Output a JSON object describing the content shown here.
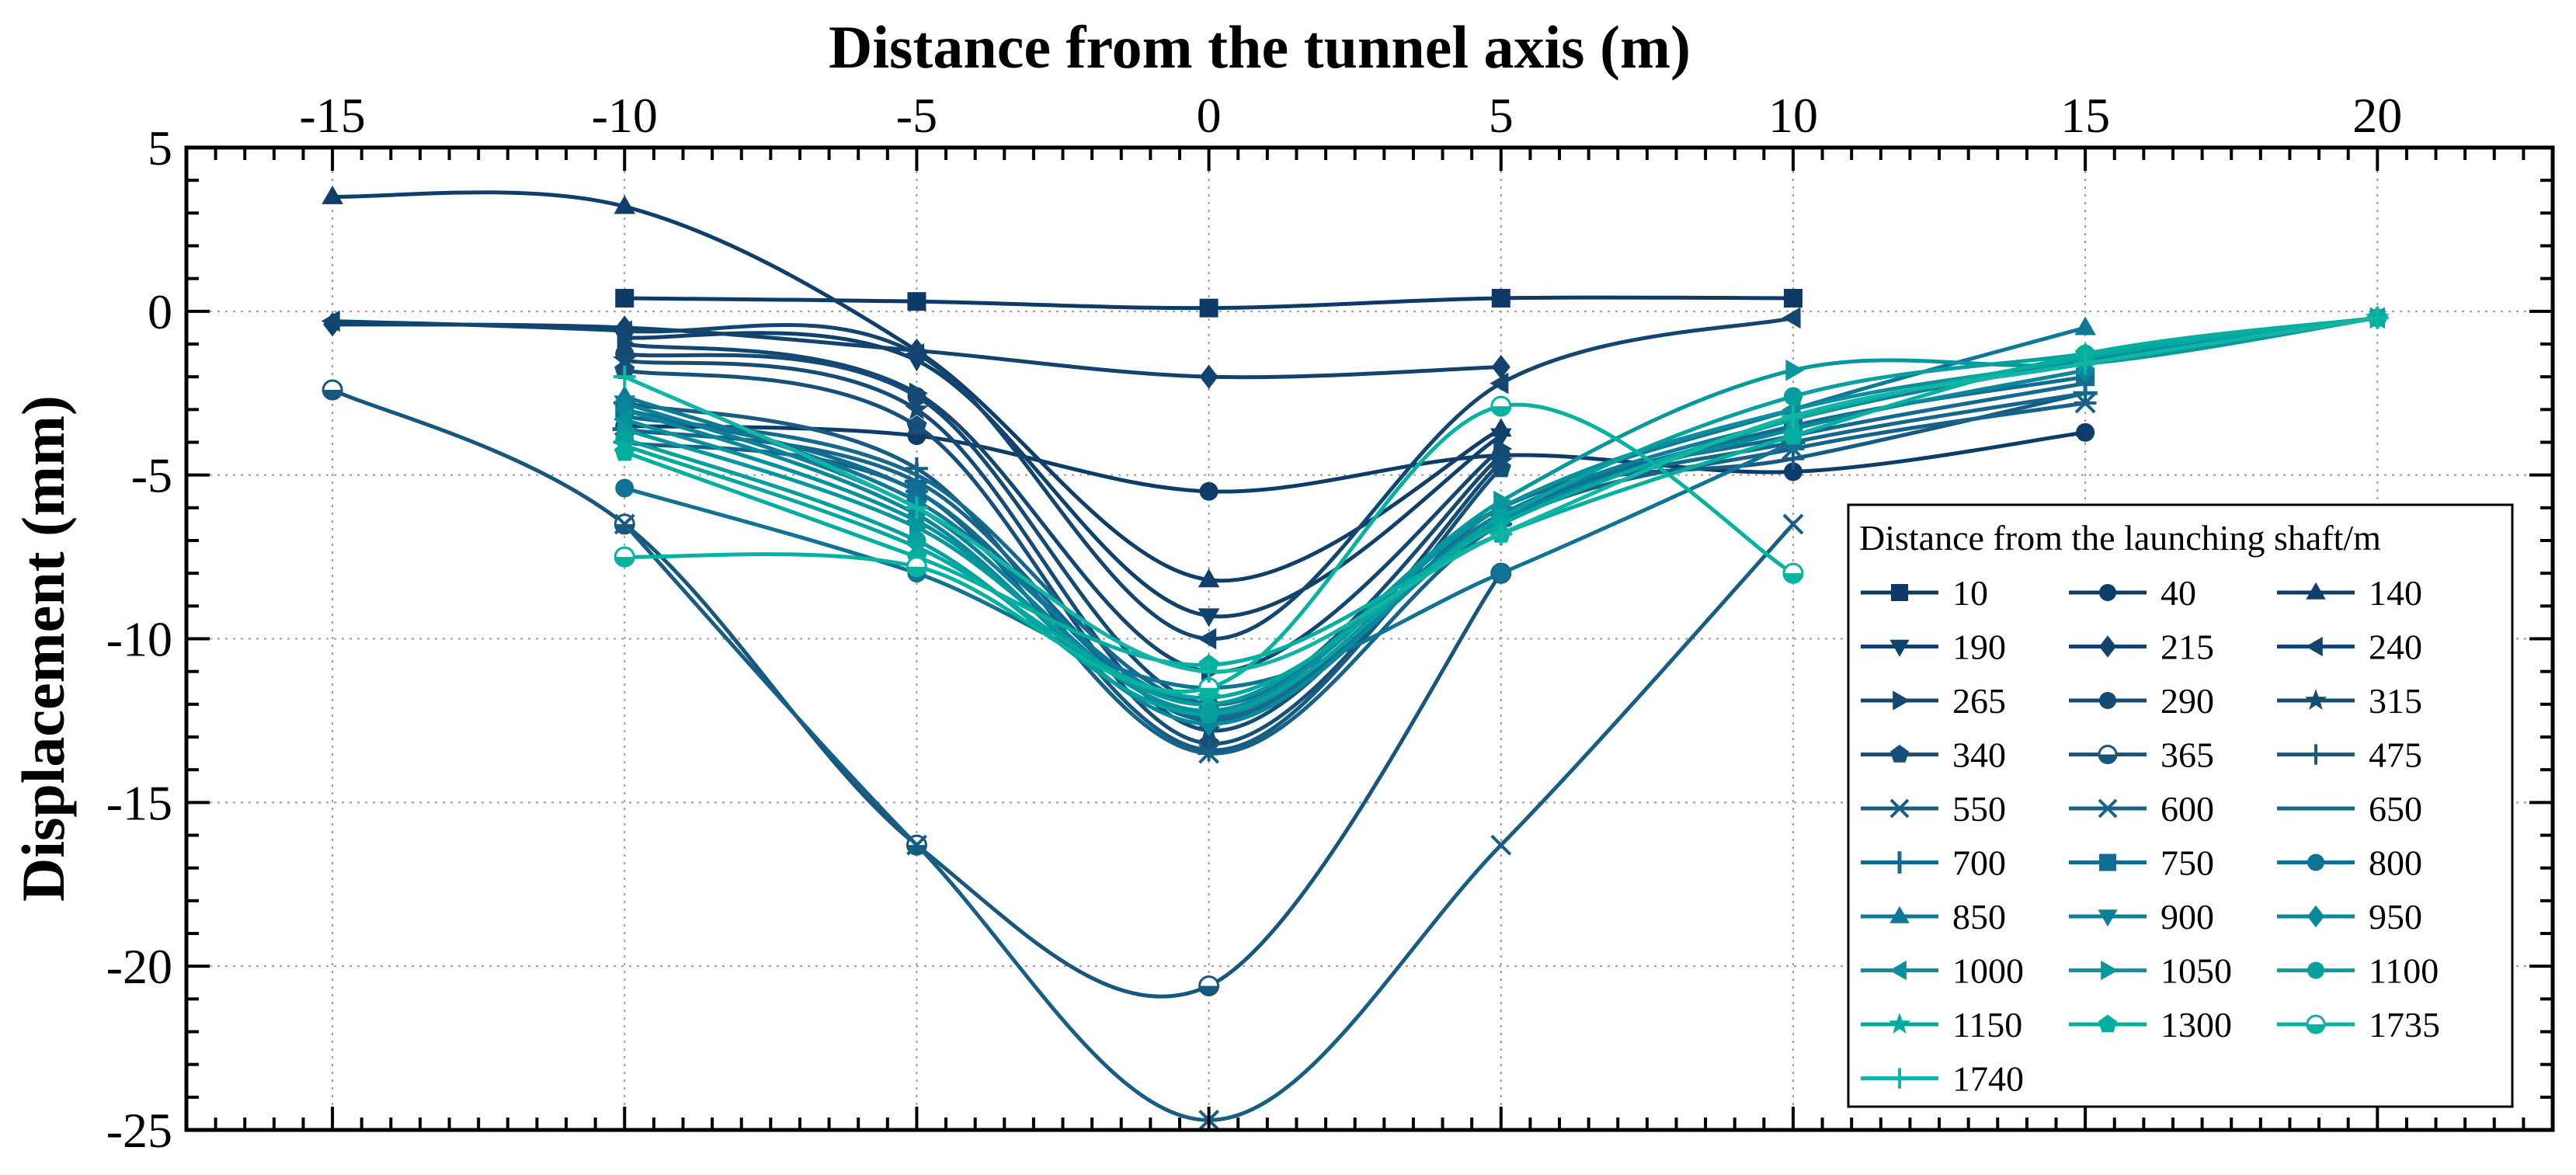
{
  "chart_data": {
    "type": "line",
    "xlabel": "Distance from the tunnel axis (m)",
    "ylabel": "Displacement (mm)",
    "xlim": [
      -17.5,
      23
    ],
    "ylim": [
      -25,
      5
    ],
    "xticks": [
      -15,
      -10,
      -5,
      0,
      5,
      10,
      15,
      20
    ],
    "yticks": [
      5,
      0,
      -5,
      -10,
      -15,
      -20,
      -25
    ],
    "grid": true,
    "legend_title": "Distance from the launching shaft/m",
    "legend_position": "bottom-right",
    "series": [
      {
        "name": "10",
        "marker": "square",
        "color": "#0d3a66",
        "x": [
          -10,
          -5,
          0,
          5,
          10
        ],
        "y": [
          0.4,
          0.3,
          0.1,
          0.4,
          0.4
        ]
      },
      {
        "name": "40",
        "marker": "circle",
        "color": "#0e3c68",
        "x": [
          -10,
          -5,
          0,
          5,
          10,
          15
        ],
        "y": [
          -3.5,
          -3.8,
          -5.5,
          -4.4,
          -4.9,
          -3.7
        ]
      },
      {
        "name": "140",
        "marker": "triangle-up",
        "color": "#0f3e6a",
        "x": [
          -15,
          -10,
          -5,
          0,
          5
        ],
        "y": [
          3.5,
          3.2,
          -1.2,
          -8.2,
          -3.6
        ]
      },
      {
        "name": "190",
        "marker": "triangle-down",
        "color": "#10416c",
        "x": [
          -10,
          -5,
          0,
          5
        ],
        "y": [
          -0.8,
          -1.5,
          -9.3,
          -3.8
        ]
      },
      {
        "name": "215",
        "marker": "diamond",
        "color": "#11436e",
        "x": [
          -15,
          -10,
          -5,
          0,
          5
        ],
        "y": [
          -0.4,
          -0.5,
          -1.2,
          -2.0,
          -1.7
        ]
      },
      {
        "name": "240",
        "marker": "triangle-left",
        "color": "#124570",
        "x": [
          -15,
          -10,
          -5,
          0,
          5,
          10
        ],
        "y": [
          -0.3,
          -0.6,
          -1.3,
          -10.0,
          -2.2,
          -0.2
        ]
      },
      {
        "name": "265",
        "marker": "triangle-right",
        "color": "#134772",
        "x": [
          -10,
          -5,
          0,
          5
        ],
        "y": [
          -1.0,
          -2.5,
          -11.0,
          -4.2
        ]
      },
      {
        "name": "290",
        "marker": "circle",
        "color": "#144a74",
        "x": [
          -10,
          -5,
          0,
          5
        ],
        "y": [
          -1.3,
          -2.6,
          -12.0,
          -4.4
        ]
      },
      {
        "name": "315",
        "marker": "star",
        "color": "#154c76",
        "x": [
          -10,
          -5,
          0,
          5
        ],
        "y": [
          -1.5,
          -3.0,
          -12.8,
          -4.6
        ]
      },
      {
        "name": "340",
        "marker": "pentagon",
        "color": "#164f78",
        "x": [
          -10,
          -5,
          0,
          5
        ],
        "y": [
          -1.8,
          -3.5,
          -13.2,
          -4.8
        ]
      },
      {
        "name": "365",
        "marker": "circle-half",
        "color": "#17577e",
        "x": [
          -15,
          -10,
          -5,
          0,
          5
        ],
        "y": [
          -2.4,
          -6.5,
          -16.3,
          -20.6,
          -8.0
        ]
      },
      {
        "name": "475",
        "marker": "plus",
        "color": "#185a80",
        "x": [
          -10,
          -5,
          0,
          5,
          10,
          15
        ],
        "y": [
          -2.8,
          -4.8,
          -13.4,
          -6.0,
          -4.5,
          -2.5
        ]
      },
      {
        "name": "550",
        "marker": "x",
        "color": "#175e84",
        "x": [
          -10,
          -5,
          0,
          5,
          10
        ],
        "y": [
          -6.5,
          -16.3,
          -24.7,
          -16.3,
          -6.5
        ]
      },
      {
        "name": "600",
        "marker": "asterisk",
        "color": "#166288",
        "x": [
          -10,
          -5,
          0,
          5,
          10,
          15
        ],
        "y": [
          -4.0,
          -5.5,
          -13.5,
          -6.5,
          -4.2,
          -2.8
        ]
      },
      {
        "name": "650",
        "marker": "hline",
        "color": "#15668b",
        "x": [
          -10,
          -5,
          0,
          5,
          10,
          15
        ],
        "y": [
          -3.6,
          -5.2,
          -12.5,
          -6.2,
          -4.0,
          -2.5
        ]
      },
      {
        "name": "700",
        "marker": "vline",
        "color": "#146a8e",
        "x": [
          -10,
          -5,
          0,
          5,
          10,
          15
        ],
        "y": [
          -3.2,
          -5.0,
          -12.0,
          -6.0,
          -3.8,
          -2.2
        ]
      },
      {
        "name": "750",
        "marker": "square",
        "color": "#126e90",
        "x": [
          -10,
          -5,
          0,
          5,
          10,
          15
        ],
        "y": [
          -3.0,
          -5.5,
          -12.4,
          -6.3,
          -3.5,
          -2.0
        ]
      },
      {
        "name": "800",
        "marker": "circle",
        "color": "#107393",
        "x": [
          -10,
          -5,
          0,
          5,
          10
        ],
        "y": [
          -5.4,
          -8.0,
          -11.5,
          -8.0,
          -4.0
        ]
      },
      {
        "name": "850",
        "marker": "triangle-up",
        "color": "#0e7996",
        "x": [
          -10,
          -5,
          0,
          5,
          10,
          15
        ],
        "y": [
          -2.6,
          -5.8,
          -12.0,
          -6.0,
          -3.0,
          -0.5
        ]
      },
      {
        "name": "900",
        "marker": "triangle-down",
        "color": "#0c8098",
        "x": [
          -10,
          -5,
          0,
          5,
          10,
          15
        ],
        "y": [
          -2.8,
          -6.0,
          -12.3,
          -6.2,
          -3.3,
          -1.5
        ]
      },
      {
        "name": "950",
        "marker": "diamond",
        "color": "#0a889b",
        "x": [
          -10,
          -5,
          0,
          5,
          10,
          15
        ],
        "y": [
          -3.0,
          -6.2,
          -12.6,
          -6.4,
          -3.6,
          -1.8
        ]
      },
      {
        "name": "1000",
        "marker": "triangle-left",
        "color": "#08909c",
        "x": [
          -10,
          -5,
          0,
          5,
          10,
          15,
          20
        ],
        "y": [
          -3.3,
          -6.4,
          -12.2,
          -6.0,
          -3.0,
          -1.5,
          -0.2
        ]
      },
      {
        "name": "1050",
        "marker": "triangle-right",
        "color": "#07989d",
        "x": [
          -10,
          -5,
          0,
          5,
          10,
          15,
          20
        ],
        "y": [
          -3.6,
          -6.6,
          -12.0,
          -5.8,
          -1.8,
          -1.6,
          -0.2
        ]
      },
      {
        "name": "1100",
        "marker": "circle",
        "color": "#06a09e",
        "x": [
          -10,
          -5,
          0,
          5,
          10,
          15,
          20
        ],
        "y": [
          -3.9,
          -7.0,
          -12.3,
          -6.3,
          -2.6,
          -1.3,
          -0.2
        ]
      },
      {
        "name": "1150",
        "marker": "star",
        "color": "#05a89f",
        "x": [
          -10,
          -5,
          0,
          5,
          10,
          15,
          20
        ],
        "y": [
          -4.1,
          -7.2,
          -11.8,
          -6.5,
          -3.3,
          -1.4,
          -0.2
        ]
      },
      {
        "name": "1300",
        "marker": "pentagon",
        "color": "#04afa0",
        "x": [
          -10,
          -5,
          0,
          5,
          10,
          15,
          20
        ],
        "y": [
          -4.3,
          -7.5,
          -10.8,
          -6.8,
          -3.8,
          -1.3,
          -0.2
        ]
      },
      {
        "name": "1735",
        "marker": "circle-half",
        "color": "#06b2a0",
        "x": [
          -10,
          -5,
          0,
          5,
          10
        ],
        "y": [
          -7.5,
          -7.8,
          -11.5,
          -2.9,
          -8.0
        ]
      },
      {
        "name": "1740",
        "marker": "plus",
        "color": "#12b5a3",
        "x": [
          -10,
          -5,
          0,
          5,
          10,
          15,
          20
        ],
        "y": [
          -2.0,
          -6.0,
          -11.0,
          -6.8,
          -3.2,
          -1.6,
          -0.2
        ]
      }
    ]
  }
}
